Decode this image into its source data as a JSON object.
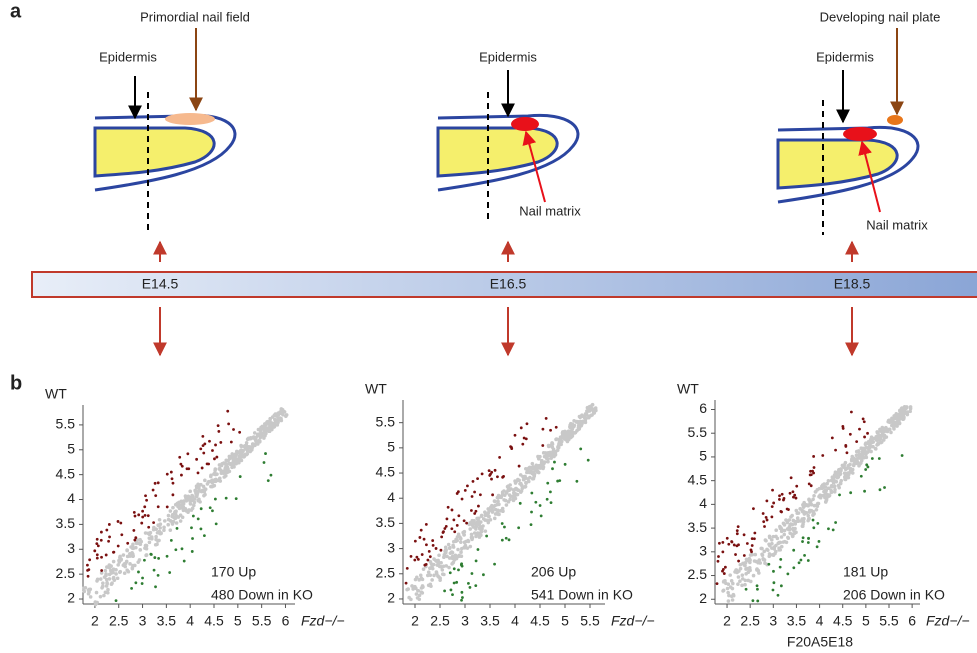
{
  "panel_a": {
    "label": "a",
    "stages": [
      {
        "stage": "E14.5",
        "epidermis": "Epidermis",
        "top_note": "Primordial nail field"
      },
      {
        "stage": "E16.5",
        "epidermis": "Epidermis",
        "matrix": "Nail matrix"
      },
      {
        "stage": "E18.5",
        "epidermis": "Epidermis",
        "top_note": "Developing nail plate",
        "matrix": "Nail matrix"
      }
    ]
  },
  "panel_b": {
    "label": "b",
    "caption": "F20A5E18",
    "plots": [
      {
        "y_label": "WT",
        "x_label": "Fzd−/−",
        "up": "170 Up",
        "down": "480 Down in KO",
        "xlim": [
          1.75,
          6.2
        ],
        "ylim": [
          1.9,
          5.9
        ],
        "xticks": [
          2,
          2.5,
          3,
          3.5,
          4,
          4.5,
          5,
          5.5,
          6
        ],
        "yticks": [
          2,
          2.5,
          3,
          3.5,
          4,
          4.5,
          5,
          5.5
        ]
      },
      {
        "y_label": "WT",
        "x_label": "Fzd−/−",
        "up": "206 Up",
        "down": "541 Down in KO",
        "xlim": [
          1.76,
          5.8
        ],
        "ylim": [
          1.9,
          5.95
        ],
        "xticks": [
          2,
          2.5,
          3,
          3.5,
          4,
          4.5,
          5,
          5.5
        ],
        "yticks": [
          2,
          2.5,
          3,
          3.5,
          4,
          4.5,
          5,
          5.5
        ]
      },
      {
        "y_label": "WT",
        "x_label": "Fzd−/−",
        "up": "181 Up",
        "down": "206 Down in KO",
        "xlim": [
          1.74,
          6.17
        ],
        "ylim": [
          1.9,
          6.2
        ],
        "xticks": [
          2,
          2.5,
          3,
          3.5,
          4,
          4.5,
          5,
          5.5,
          6
        ],
        "yticks": [
          2,
          2.5,
          3,
          3.5,
          4,
          4.5,
          5,
          5.5,
          6
        ]
      }
    ]
  }
}
